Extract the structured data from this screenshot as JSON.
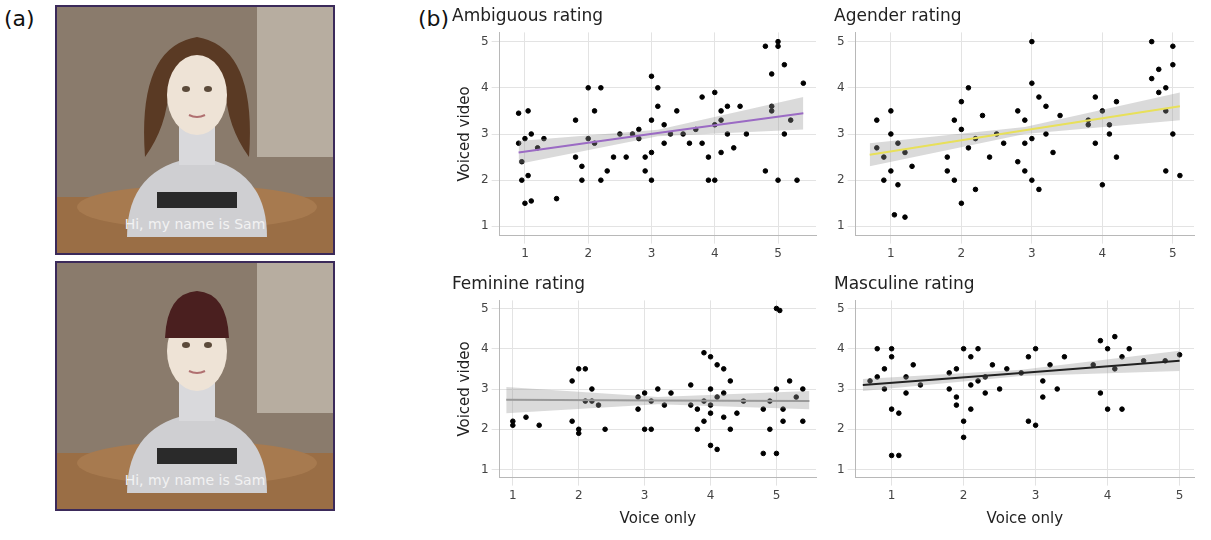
{
  "panel_labels": [
    "(a)",
    "(b)"
  ],
  "photos": [
    {
      "caption": "Hi, my name is Sam"
    },
    {
      "caption": "Hi, my name is Sam"
    }
  ],
  "chart_data": [
    {
      "type": "scatter",
      "title": "Ambiguous rating",
      "y_label": "Voiced video",
      "xlim": [
        0.6,
        5.6
      ],
      "ylim": [
        0.8,
        5.2
      ],
      "xticks": [
        1,
        2,
        3,
        4,
        5
      ],
      "yticks": [
        1,
        2,
        3,
        4,
        5
      ],
      "grid": true,
      "color": "#000000",
      "marker": "circle",
      "x": [
        0.9,
        1.0,
        0.95,
        1.05,
        1.0,
        1.1,
        0.95,
        1.1,
        1.05,
        1.2,
        1.3,
        1.5,
        0.9,
        1.8,
        1.9,
        2.0,
        2.1,
        2.2,
        2.0,
        2.3,
        2.4,
        2.5,
        1.9,
        2.1,
        2.6,
        2.7,
        2.2,
        1.8,
        2.8,
        2.9,
        3.0,
        3.1,
        3.0,
        3.2,
        3.3,
        2.9,
        3.0,
        3.1,
        3.4,
        3.5,
        2.8,
        3.2,
        3.0,
        3.6,
        3.7,
        3.8,
        3.9,
        4.0,
        4.1,
        4.0,
        4.2,
        3.9,
        4.1,
        4.3,
        4.0,
        4.4,
        4.2,
        3.8,
        4.5,
        4.1,
        4.8,
        4.9,
        5.0,
        5.0,
        4.9,
        5.1,
        4.8,
        5.0,
        5.2,
        5.4,
        5.3,
        4.9,
        5.1
      ],
      "values": [
        3.45,
        2.9,
        2.4,
        2.1,
        1.5,
        1.55,
        2.0,
        3.0,
        3.5,
        2.7,
        2.9,
        1.6,
        2.8,
        2.5,
        2.0,
        2.9,
        3.5,
        4.0,
        4.0,
        2.2,
        2.5,
        3.0,
        2.3,
        2.8,
        2.5,
        3.0,
        2.0,
        3.3,
        3.1,
        2.5,
        4.25,
        4.0,
        3.3,
        2.8,
        3.0,
        2.2,
        2.0,
        3.6,
        3.5,
        3.0,
        2.9,
        3.2,
        2.6,
        2.8,
        3.1,
        3.8,
        2.5,
        3.9,
        3.5,
        2.0,
        3.0,
        2.0,
        3.3,
        2.7,
        3.2,
        3.6,
        3.6,
        2.8,
        3.0,
        2.6,
        4.9,
        4.3,
        5.0,
        4.9,
        3.5,
        3.0,
        2.2,
        2.0,
        3.3,
        4.1,
        2.0,
        3.6,
        4.5
      ],
      "fit": {
        "x": [
          0.9,
          3.1,
          5.4
        ],
        "values": [
          2.6,
          3.02,
          3.45
        ],
        "lower": [
          2.35,
          2.95,
          3.1
        ],
        "upper": [
          2.85,
          3.09,
          3.8
        ],
        "color": "#9b6bc4"
      }
    },
    {
      "type": "scatter",
      "title": "Agender rating",
      "xlim": [
        0.5,
        5.3
      ],
      "ylim": [
        0.8,
        5.2
      ],
      "xticks": [
        1,
        2,
        3,
        4,
        5
      ],
      "yticks": [
        1,
        2,
        3,
        4,
        5
      ],
      "grid": true,
      "color": "#000000",
      "marker": "circle",
      "x": [
        0.8,
        0.9,
        1.0,
        1.0,
        1.05,
        1.2,
        0.9,
        1.1,
        1.0,
        1.2,
        1.3,
        0.8,
        1.1,
        1.8,
        1.9,
        2.0,
        2.1,
        2.0,
        2.2,
        2.3,
        2.4,
        1.9,
        2.1,
        2.5,
        2.2,
        2.6,
        2.0,
        1.8,
        2.8,
        2.9,
        3.0,
        3.0,
        3.1,
        3.0,
        3.2,
        2.9,
        3.1,
        3.3,
        2.8,
        3.2,
        3.0,
        3.4,
        2.9,
        3.8,
        3.9,
        4.0,
        4.1,
        4.0,
        4.2,
        3.9,
        4.1,
        3.8,
        4.2,
        4.7,
        4.8,
        4.9,
        5.0,
        5.0,
        4.8,
        4.9,
        5.0,
        5.1,
        4.9,
        4.7
      ],
      "values": [
        3.3,
        2.5,
        3.5,
        2.2,
        1.25,
        1.2,
        2.0,
        2.8,
        3.0,
        2.6,
        2.3,
        2.7,
        1.9,
        2.5,
        3.3,
        3.7,
        4.0,
        1.5,
        2.9,
        3.4,
        2.5,
        2.0,
        2.7,
        3.0,
        1.8,
        2.8,
        3.1,
        2.2,
        3.5,
        2.8,
        5.0,
        4.1,
        3.8,
        2.0,
        3.0,
        3.3,
        1.8,
        2.6,
        2.4,
        3.6,
        2.9,
        3.4,
        2.2,
        3.3,
        3.8,
        3.5,
        3.0,
        1.9,
        2.5,
        2.8,
        3.2,
        3.2,
        3.7,
        5.0,
        4.4,
        4.0,
        4.9,
        4.5,
        3.9,
        3.5,
        3.0,
        2.1,
        2.2,
        4.2
      ],
      "fit": {
        "x": [
          0.7,
          2.9,
          5.1
        ],
        "values": [
          2.55,
          3.08,
          3.6
        ],
        "lower": [
          2.3,
          3.0,
          3.3
        ],
        "upper": [
          2.8,
          3.15,
          3.9
        ],
        "color": "#e8e05a"
      }
    },
    {
      "type": "scatter",
      "title": "Feminine rating",
      "x_label": "Voice only",
      "y_label": "Voiced video",
      "xlim": [
        0.8,
        5.6
      ],
      "ylim": [
        0.8,
        5.2
      ],
      "xticks": [
        1,
        2,
        3,
        4,
        5
      ],
      "yticks": [
        1,
        2,
        3,
        4,
        5
      ],
      "grid": true,
      "color": "#000000",
      "marker": "circle",
      "x": [
        1.0,
        1.0,
        1.2,
        1.4,
        1.9,
        2.0,
        2.1,
        2.0,
        2.2,
        2.3,
        2.4,
        1.9,
        2.1,
        2.2,
        2.0,
        2.9,
        3.0,
        3.1,
        3.0,
        3.2,
        3.3,
        2.9,
        3.1,
        3.4,
        3.7,
        3.8,
        3.9,
        4.0,
        4.0,
        4.1,
        4.2,
        3.9,
        4.0,
        4.1,
        4.3,
        4.2,
        3.8,
        4.0,
        4.4,
        3.9,
        4.1,
        4.3,
        4.5,
        4.2,
        3.7,
        4.0,
        4.8,
        4.9,
        5.0,
        5.05,
        5.0,
        4.9,
        5.1,
        5.2,
        5.0,
        4.8,
        5.3,
        5.4,
        5.4,
        5.1
      ],
      "values": [
        2.2,
        2.1,
        2.3,
        2.1,
        3.2,
        3.5,
        3.5,
        2.0,
        2.7,
        2.6,
        2.0,
        2.2,
        2.7,
        3.0,
        1.9,
        2.5,
        2.9,
        2.7,
        2.0,
        3.0,
        2.6,
        2.8,
        2.0,
        2.9,
        3.1,
        2.5,
        3.9,
        3.8,
        1.6,
        2.8,
        3.5,
        2.2,
        2.6,
        1.5,
        3.2,
        2.9,
        2.0,
        3.0,
        2.4,
        2.7,
        3.6,
        2.0,
        2.7,
        2.3,
        2.6,
        2.4,
        2.5,
        2.0,
        5.0,
        4.95,
        3.0,
        2.7,
        2.2,
        3.2,
        1.4,
        1.4,
        2.8,
        2.2,
        3.0,
        2.5
      ],
      "fit": {
        "x": [
          0.9,
          3.2,
          5.5
        ],
        "values": [
          2.73,
          2.715,
          2.7
        ],
        "lower": [
          2.4,
          2.62,
          2.5
        ],
        "upper": [
          3.05,
          2.8,
          2.95
        ],
        "color": "#999999"
      }
    },
    {
      "type": "scatter",
      "title": "Masculine rating",
      "x_label": "Voice only",
      "xlim": [
        0.5,
        5.2
      ],
      "ylim": [
        0.8,
        5.2
      ],
      "xticks": [
        1,
        2,
        3,
        4,
        5
      ],
      "yticks": [
        1,
        2,
        3,
        4,
        5
      ],
      "grid": true,
      "color": "#000000",
      "marker": "circle",
      "x": [
        0.7,
        0.8,
        0.9,
        1.0,
        1.0,
        1.1,
        1.0,
        1.1,
        0.9,
        1.2,
        1.3,
        1.0,
        1.2,
        0.8,
        1.4,
        1.8,
        1.9,
        2.0,
        2.1,
        2.0,
        2.2,
        2.1,
        1.9,
        2.3,
        2.4,
        2.0,
        2.2,
        1.8,
        2.5,
        2.6,
        2.1,
        1.9,
        2.3,
        2.8,
        2.9,
        3.0,
        3.0,
        3.1,
        3.2,
        3.3,
        2.9,
        3.4,
        3.1,
        3.8,
        3.9,
        4.0,
        4.1,
        4.0,
        4.1,
        3.9,
        4.2,
        4.3,
        4.5,
        4.2,
        4.8,
        5.0
      ],
      "values": [
        3.2,
        4.0,
        3.5,
        2.5,
        1.35,
        1.35,
        3.8,
        2.4,
        3.0,
        3.3,
        3.6,
        4.0,
        2.9,
        3.3,
        3.1,
        3.0,
        3.5,
        4.0,
        3.8,
        1.8,
        3.2,
        2.5,
        2.8,
        3.3,
        3.6,
        2.2,
        4.0,
        3.4,
        3.0,
        3.5,
        3.1,
        2.6,
        2.9,
        3.4,
        3.8,
        4.0,
        2.1,
        3.2,
        3.6,
        3.0,
        2.2,
        3.8,
        2.8,
        3.6,
        4.2,
        4.0,
        4.3,
        2.5,
        3.5,
        2.9,
        3.8,
        4.0,
        3.7,
        2.5,
        3.7,
        3.85
      ],
      "fit": {
        "x": [
          0.6,
          2.8,
          5.0
        ],
        "values": [
          3.1,
          3.4,
          3.7
        ],
        "lower": [
          2.95,
          3.32,
          3.45
        ],
        "upper": [
          3.25,
          3.48,
          3.95
        ],
        "color": "#222222"
      }
    }
  ]
}
